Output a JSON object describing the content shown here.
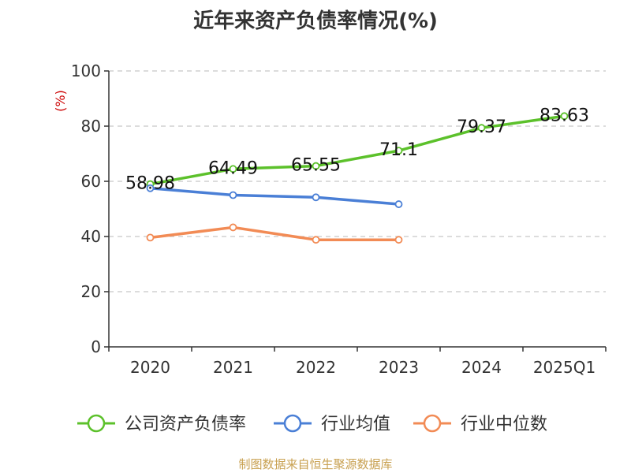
{
  "chart_data": {
    "type": "line",
    "title": "近年来资产负债率情况(%)",
    "ylabel": "(%)",
    "xlabel": "",
    "categories": [
      "2020",
      "2021",
      "2022",
      "2023",
      "2024",
      "2025Q1"
    ],
    "ylim": [
      0,
      100
    ],
    "yticks": [
      0,
      20,
      40,
      60,
      80,
      100
    ],
    "grid": true,
    "legend_position": "bottom",
    "series": [
      {
        "name": "公司资产负债率",
        "color": "#5cc12b",
        "values": [
          58.98,
          64.49,
          65.55,
          71.1,
          79.37,
          83.63
        ],
        "labels": [
          "58.98",
          "64.49",
          "65.55",
          "71.1",
          "79.37",
          "83.63"
        ]
      },
      {
        "name": "行业均值",
        "color": "#4a7fd6",
        "values": [
          57.5,
          55.0,
          54.2,
          51.7,
          null,
          null
        ]
      },
      {
        "name": "行业中位数",
        "color": "#f28b55",
        "values": [
          39.6,
          43.3,
          38.8,
          38.8,
          null,
          null
        ]
      }
    ]
  },
  "source_note": "制图数据来自恒生聚源数据库",
  "colors": {
    "ylabel": "#cc0000",
    "grid": "#c8c8c8",
    "axis": "#333333"
  }
}
